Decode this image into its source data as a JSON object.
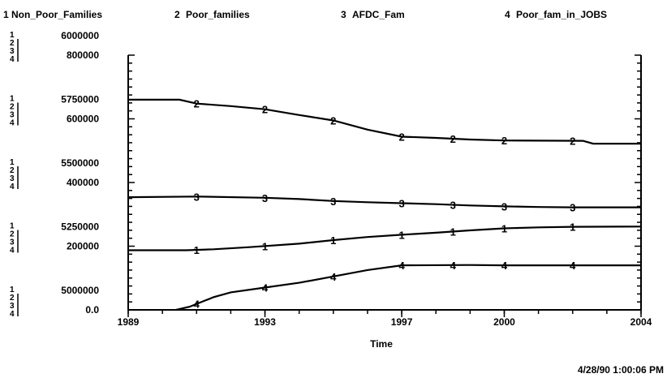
{
  "chart_data": {
    "type": "line",
    "xlabel": "Time",
    "x_ticks": [
      "1989",
      "1993",
      "1997",
      "2000",
      "2004"
    ],
    "x_range": [
      1989,
      2004
    ],
    "legend": [
      {
        "num": "1",
        "name": "Non_Poor_Families"
      },
      {
        "num": "2",
        "name": "Poor_families"
      },
      {
        "num": "3",
        "name": "AFDC_Fam"
      },
      {
        "num": "4",
        "name": "Poor_fam_in_JOBS"
      }
    ],
    "y_tick_groups": [
      {
        "scale1": "6000000",
        "scale234": "800000"
      },
      {
        "scale1": "5750000",
        "scale234": "600000"
      },
      {
        "scale1": "5500000",
        "scale234": "400000"
      },
      {
        "scale1": "5250000",
        "scale234": "200000"
      },
      {
        "scale1": "5000000",
        "scale234": "0.0"
      }
    ],
    "scale_numbers": [
      "1",
      "2",
      "3",
      "4"
    ],
    "scales": {
      "series1_range": [
        5000000,
        6000000
      ],
      "series234_range": [
        0,
        800000
      ]
    },
    "series": [
      {
        "num": "1",
        "name": "Non_Poor_Families",
        "scale": "series1_range",
        "markers": [
          1991,
          1993,
          1995,
          1997,
          1998.5,
          2000,
          2002
        ],
        "points": [
          [
            1989,
            5234000
          ],
          [
            1990.7,
            5234000
          ],
          [
            1991.5,
            5238000
          ],
          [
            1992.5,
            5246000
          ],
          [
            1994,
            5260000
          ],
          [
            1995,
            5274000
          ],
          [
            1996,
            5286000
          ],
          [
            1997,
            5295000
          ],
          [
            1998,
            5303000
          ],
          [
            1999,
            5312000
          ],
          [
            2000,
            5320000
          ],
          [
            2001,
            5324000
          ],
          [
            2002,
            5326000
          ],
          [
            2004,
            5327000
          ]
        ]
      },
      {
        "num": "2",
        "name": "Poor_families",
        "scale": "series234_range",
        "markers": [
          1991,
          1993,
          1995,
          1997,
          1998.5,
          2000,
          2002
        ],
        "points": [
          [
            1989,
            660000
          ],
          [
            1990.5,
            660000
          ],
          [
            1991,
            648000
          ],
          [
            1992,
            640000
          ],
          [
            1993,
            630000
          ],
          [
            1994,
            612000
          ],
          [
            1995,
            595000
          ],
          [
            1996,
            566000
          ],
          [
            1997,
            544000
          ],
          [
            1998,
            540000
          ],
          [
            1999,
            535000
          ],
          [
            2000,
            532000
          ],
          [
            2002.3,
            531000
          ],
          [
            2002.6,
            522000
          ],
          [
            2004,
            522000
          ]
        ]
      },
      {
        "num": "3",
        "name": "AFDC_Fam",
        "scale": "series234_range",
        "markers": [
          1991,
          1993,
          1995,
          1997,
          1998.5,
          2000,
          2002
        ],
        "points": [
          [
            1989,
            354000
          ],
          [
            1991,
            356000
          ],
          [
            1993,
            352000
          ],
          [
            1994,
            348000
          ],
          [
            1995,
            342000
          ],
          [
            1996,
            338000
          ],
          [
            1997,
            335000
          ],
          [
            1998,
            332000
          ],
          [
            1999,
            328000
          ],
          [
            2000,
            325000
          ],
          [
            2001,
            323000
          ],
          [
            2002,
            322000
          ],
          [
            2004,
            322000
          ]
        ]
      },
      {
        "num": "4",
        "name": "Poor_fam_in_JOBS",
        "scale": "series234_range",
        "markers": [
          1991,
          1993,
          1995,
          1997,
          1998.5,
          2000,
          2002
        ],
        "points": [
          [
            1990.4,
            0
          ],
          [
            1990.8,
            10000
          ],
          [
            1991.5,
            40000
          ],
          [
            1992,
            55000
          ],
          [
            1993,
            70000
          ],
          [
            1994,
            85000
          ],
          [
            1995,
            105000
          ],
          [
            1996,
            125000
          ],
          [
            1997,
            140000
          ],
          [
            1999,
            141000
          ],
          [
            2000,
            140000
          ],
          [
            2004,
            140000
          ]
        ]
      }
    ]
  },
  "timestamp": "4/28/90   1:00:06  PM"
}
